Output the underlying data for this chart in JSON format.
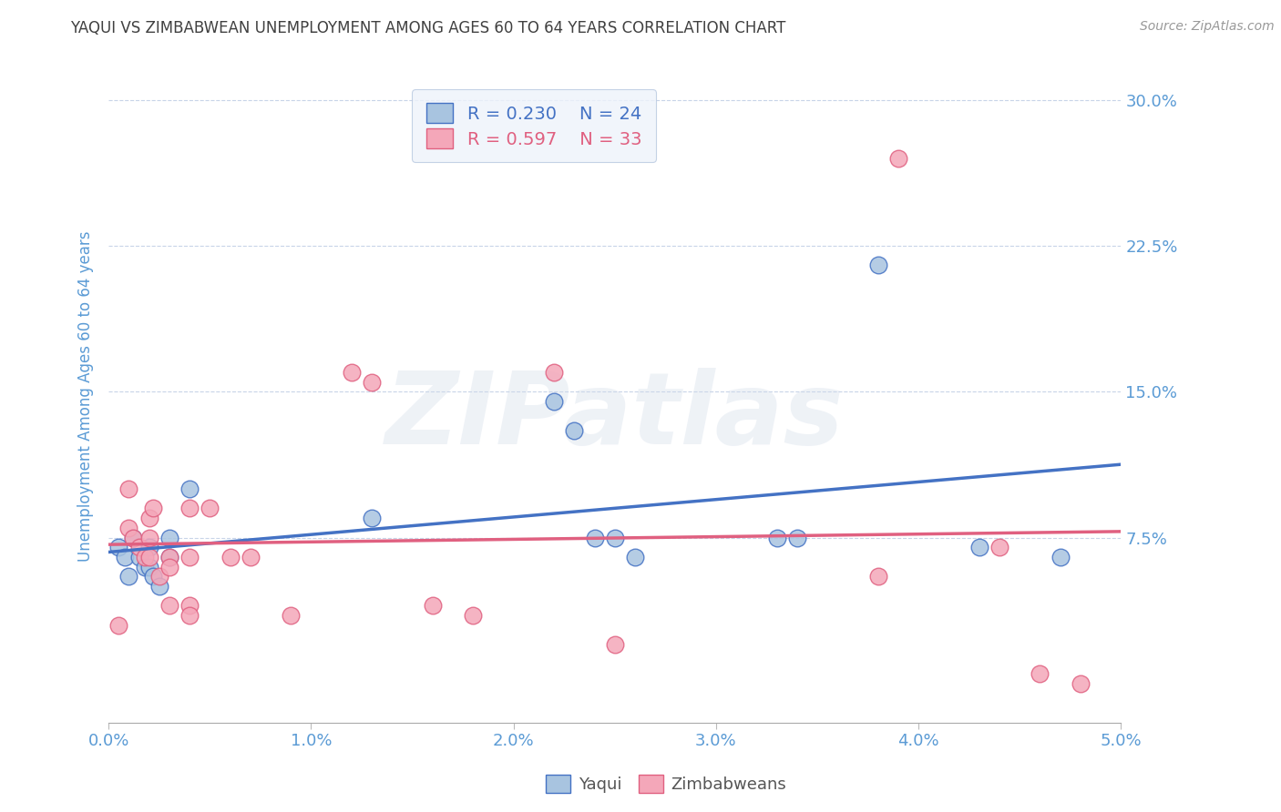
{
  "title": "YAQUI VS ZIMBABWEAN UNEMPLOYMENT AMONG AGES 60 TO 64 YEARS CORRELATION CHART",
  "source": "Source: ZipAtlas.com",
  "ylabel": "Unemployment Among Ages 60 to 64 years",
  "yaqui_R": 0.23,
  "yaqui_N": 24,
  "zimbabwe_R": 0.597,
  "zimbabwe_N": 33,
  "xmin": 0.0,
  "xmax": 0.05,
  "ymin": -0.02,
  "ymax": 0.315,
  "yticks": [
    0.075,
    0.15,
    0.225,
    0.3
  ],
  "ytick_labels": [
    "7.5%",
    "15.0%",
    "22.5%",
    "30.0%"
  ],
  "xticks": [
    0.0,
    0.01,
    0.02,
    0.03,
    0.04,
    0.05
  ],
  "xtick_labels": [
    "0.0%",
    "1.0%",
    "2.0%",
    "3.0%",
    "4.0%",
    "5.0%"
  ],
  "yaqui_color": "#a8c4e0",
  "yaqui_line_color": "#4472c4",
  "zimbabwe_color": "#f4a7b9",
  "zimbabwe_line_color": "#e06080",
  "title_color": "#404040",
  "axis_label_color": "#5b9bd5",
  "tick_color": "#5b9bd5",
  "grid_color": "#c8d4e8",
  "watermark": "ZIPatlas",
  "yaqui_x": [
    0.0005,
    0.0008,
    0.001,
    0.0012,
    0.0015,
    0.0018,
    0.002,
    0.002,
    0.0022,
    0.0025,
    0.003,
    0.003,
    0.004,
    0.013,
    0.022,
    0.023,
    0.024,
    0.025,
    0.026,
    0.033,
    0.034,
    0.038,
    0.043,
    0.047
  ],
  "yaqui_y": [
    0.07,
    0.065,
    0.055,
    0.075,
    0.065,
    0.06,
    0.06,
    0.07,
    0.055,
    0.05,
    0.075,
    0.065,
    0.1,
    0.085,
    0.145,
    0.13,
    0.075,
    0.075,
    0.065,
    0.075,
    0.075,
    0.215,
    0.07,
    0.065
  ],
  "zimbabwe_x": [
    0.0005,
    0.001,
    0.001,
    0.0012,
    0.0015,
    0.0018,
    0.002,
    0.002,
    0.002,
    0.0022,
    0.0025,
    0.003,
    0.003,
    0.003,
    0.004,
    0.004,
    0.004,
    0.004,
    0.005,
    0.006,
    0.007,
    0.009,
    0.012,
    0.013,
    0.016,
    0.018,
    0.022,
    0.025,
    0.038,
    0.039,
    0.044,
    0.046,
    0.048
  ],
  "zimbabwe_y": [
    0.03,
    0.1,
    0.08,
    0.075,
    0.07,
    0.065,
    0.085,
    0.075,
    0.065,
    0.09,
    0.055,
    0.065,
    0.06,
    0.04,
    0.09,
    0.065,
    0.04,
    0.035,
    0.09,
    0.065,
    0.065,
    0.035,
    0.16,
    0.155,
    0.04,
    0.035,
    0.16,
    0.02,
    0.055,
    0.27,
    0.07,
    0.005,
    0.0
  ],
  "background_color": "#ffffff",
  "legend_facecolor": "#eef3fb",
  "legend_edgecolor": "#b8c8e0"
}
